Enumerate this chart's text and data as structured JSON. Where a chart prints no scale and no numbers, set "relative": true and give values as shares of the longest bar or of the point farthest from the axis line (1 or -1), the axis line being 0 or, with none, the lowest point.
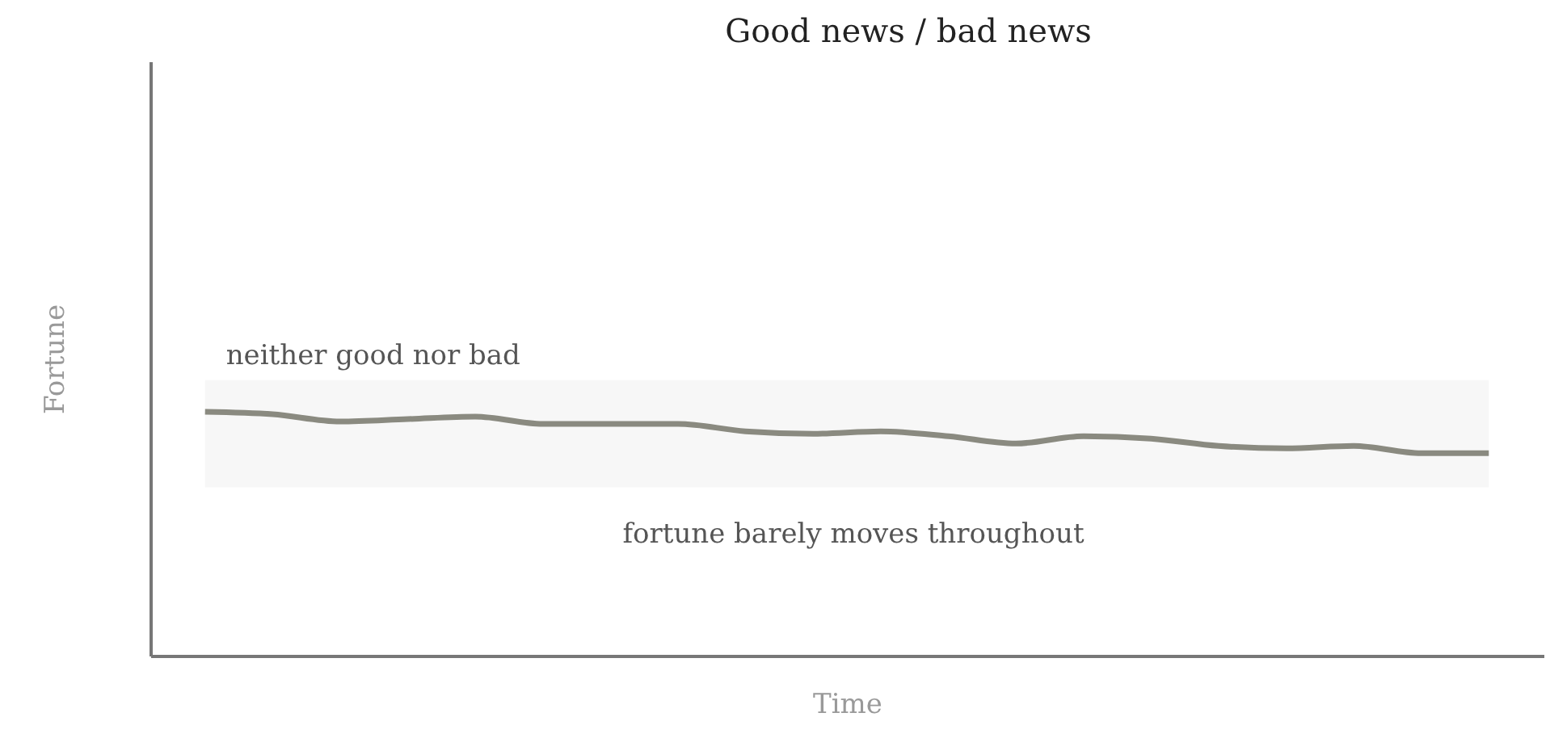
{
  "chart_data": {
    "type": "line",
    "title": "Good news / bad news",
    "xlabel": "Time",
    "ylabel": "Fortune",
    "relative": true,
    "categories": [
      null,
      null,
      null,
      null,
      null,
      null,
      null,
      null,
      null,
      null,
      null,
      null,
      null,
      null,
      null,
      null,
      null,
      null,
      null,
      null
    ],
    "series": [
      {
        "color": "#8a8a80",
        "values": [
          1,
          0.99,
          0.96,
          0.97,
          0.98,
          0.95,
          0.95,
          0.95,
          0.92,
          0.91,
          0.92,
          0.9,
          0.87,
          0.9,
          0.89,
          0.86,
          0.85,
          0.86,
          0.83,
          0.83
        ]
      }
    ],
    "bands": [
      {
        "axis": "y",
        "from": 0.69,
        "to": 1.13,
        "label": "neither good nor bad",
        "color": "#f7f7f7"
      }
    ],
    "annotations": [
      "fortune barely moves throughout"
    ]
  }
}
